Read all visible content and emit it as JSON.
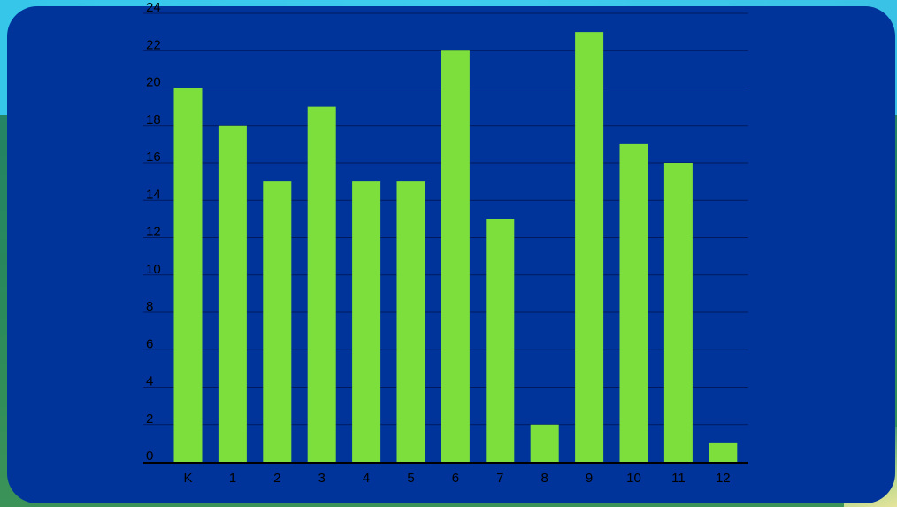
{
  "colors": {
    "card": "#01349a",
    "bar": "#7ddf3c",
    "grid": "#011a5e",
    "axis": "#000000",
    "text": "#000000"
  },
  "chart_data": {
    "type": "bar",
    "title": "",
    "xlabel": "",
    "ylabel": "",
    "categories": [
      "K",
      "1",
      "2",
      "3",
      "4",
      "5",
      "6",
      "7",
      "8",
      "9",
      "10",
      "11",
      "12"
    ],
    "values": [
      20,
      18,
      15,
      19,
      15,
      15,
      22,
      13,
      2,
      23,
      17,
      16,
      1
    ],
    "ylim": [
      0,
      24
    ],
    "yticks": [
      "0",
      "2",
      "4",
      "6",
      "8",
      "10",
      "12",
      "14",
      "16",
      "18",
      "20",
      "22",
      "24"
    ],
    "grid": true,
    "legend": "none"
  }
}
